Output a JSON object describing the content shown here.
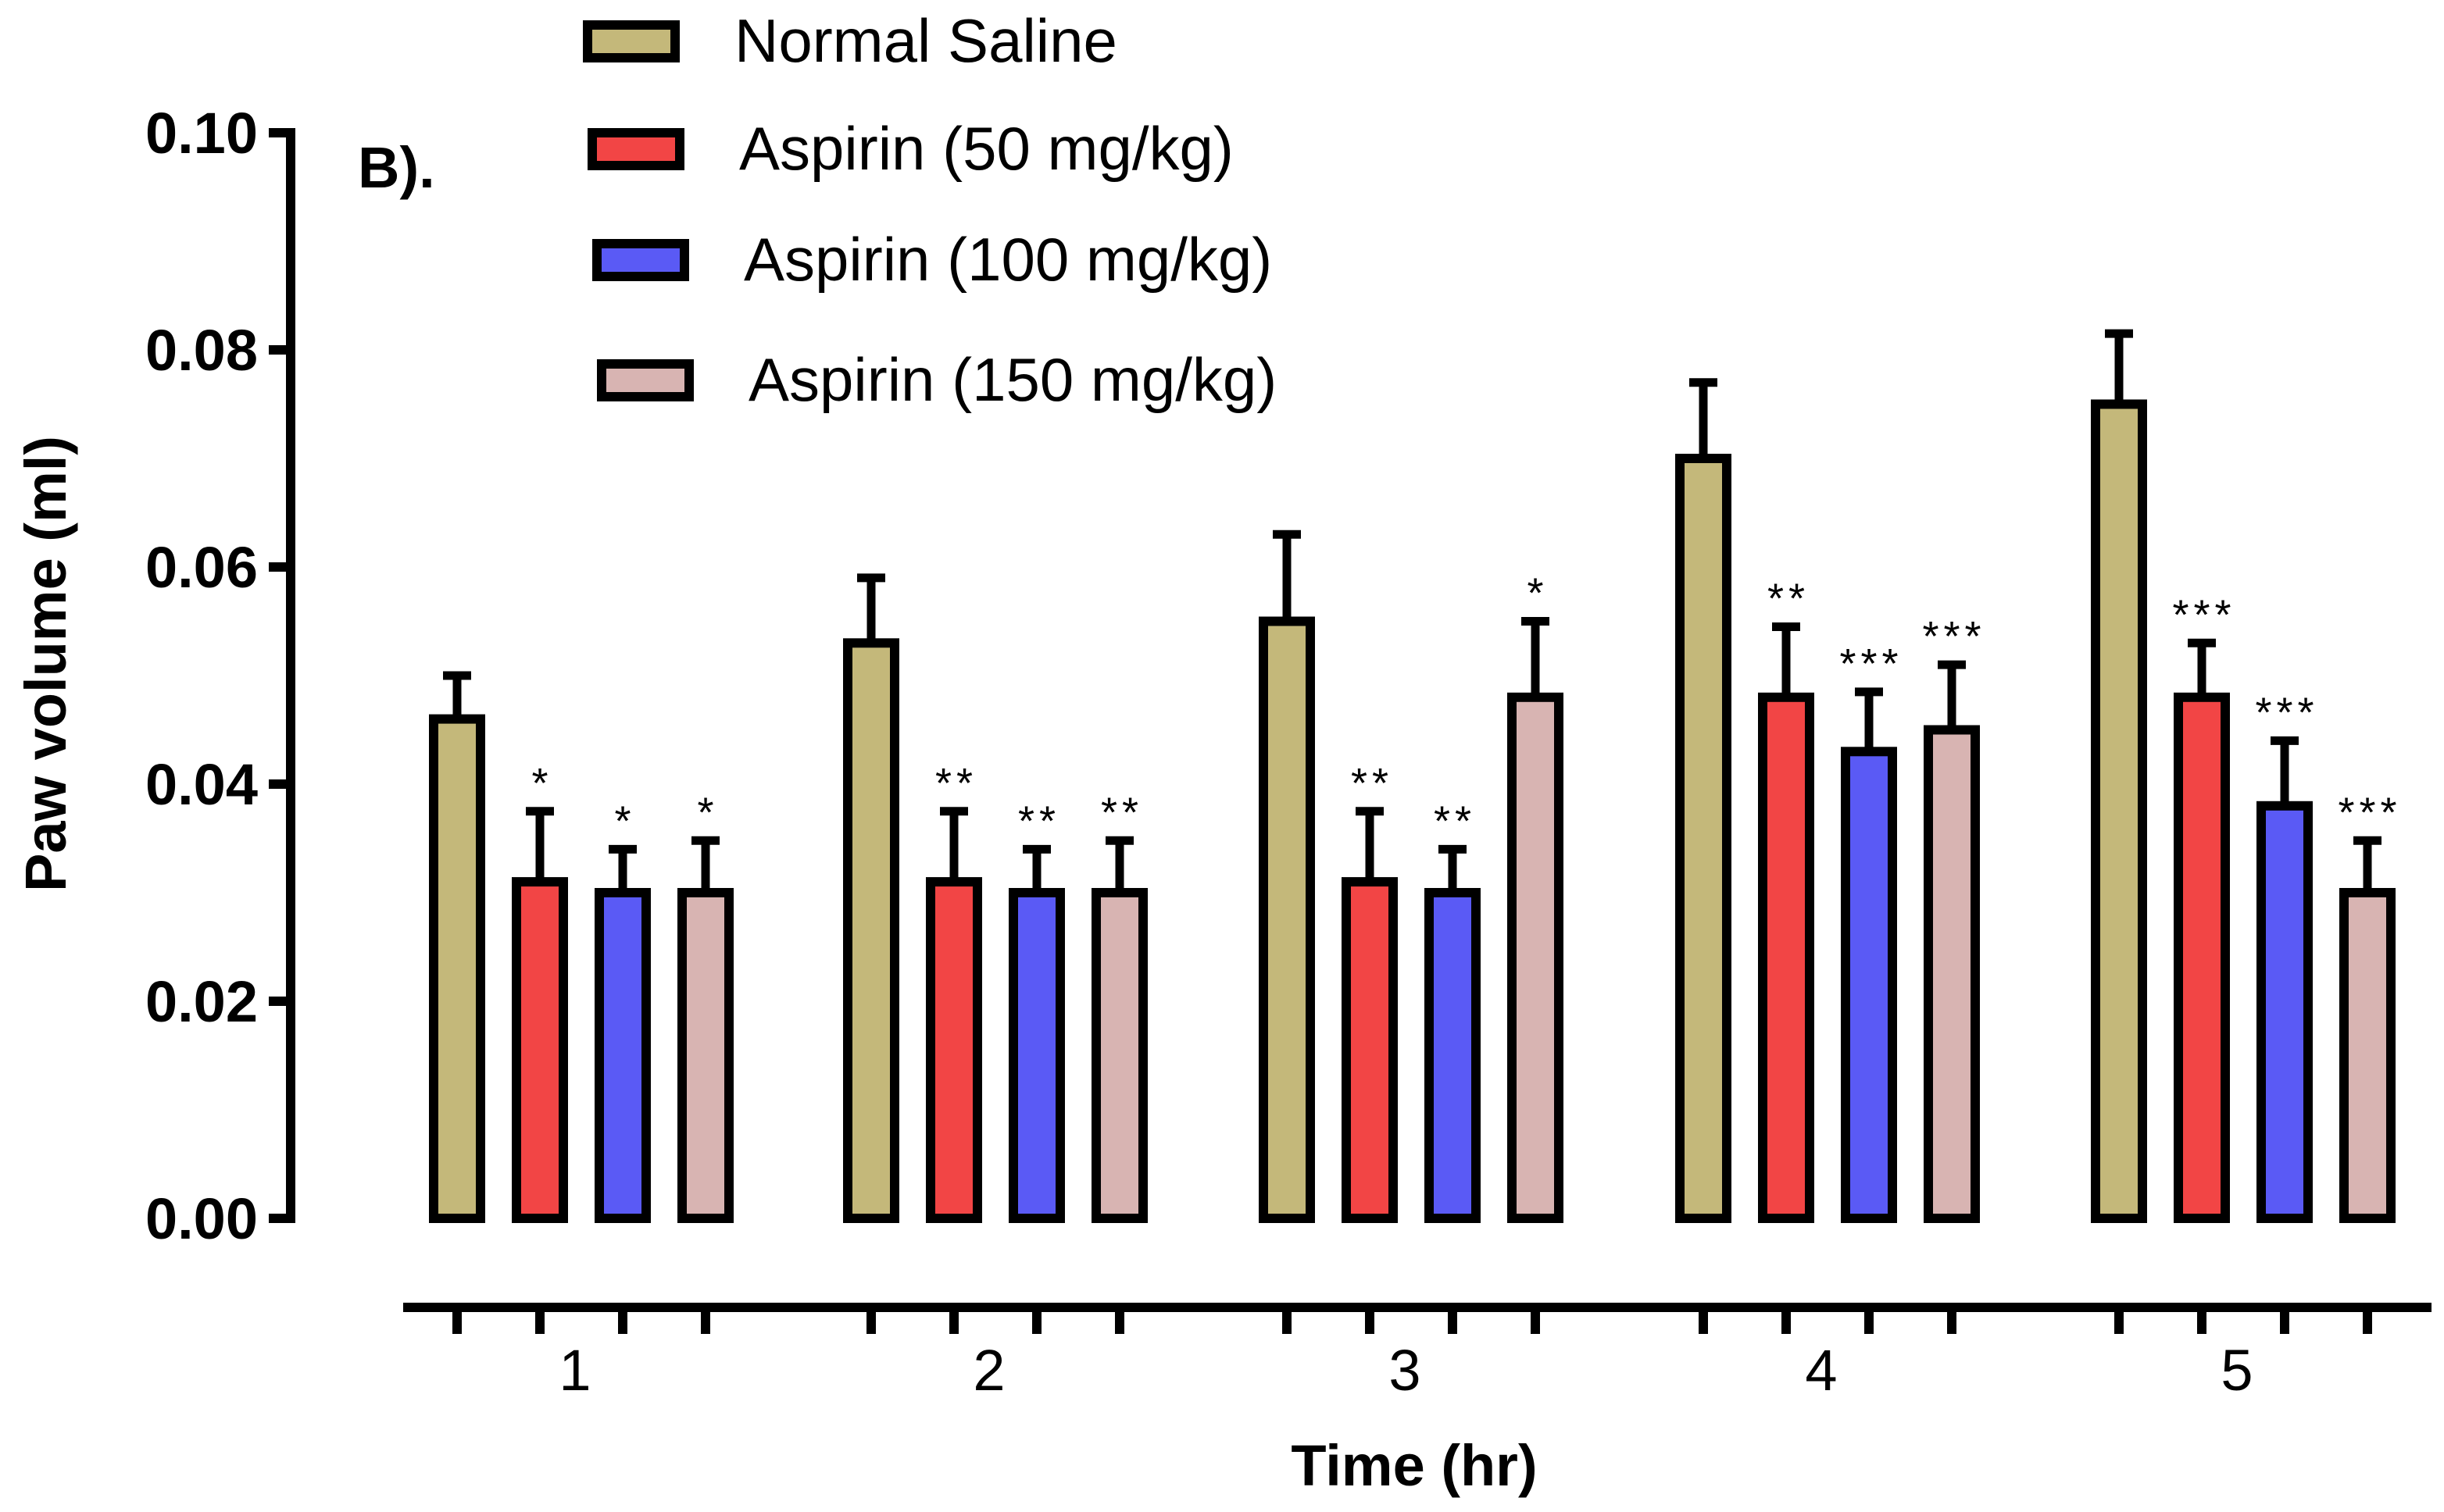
{
  "chart_data": {
    "type": "bar",
    "panel_label": "B).",
    "xlabel": "Time (hr)",
    "ylabel": "Paw volume (ml)",
    "ylim": [
      0,
      0.1
    ],
    "yticks": [
      "0.00",
      "0.02",
      "0.04",
      "0.06",
      "0.08",
      "0.10"
    ],
    "categories": [
      "1",
      "2",
      "3",
      "4",
      "5"
    ],
    "series": [
      {
        "name": "Normal Saline",
        "color": "#c4b87a",
        "values": [
          0.046,
          0.053,
          0.055,
          0.07,
          0.075
        ],
        "errors": [
          0.004,
          0.006,
          0.008,
          0.007,
          0.0065
        ],
        "significance": [
          "",
          "",
          "",
          "",
          ""
        ]
      },
      {
        "name": "Aspirin (50 mg/kg)",
        "color": "#f24545",
        "values": [
          0.031,
          0.031,
          0.031,
          0.048,
          0.048
        ],
        "errors": [
          0.0065,
          0.0065,
          0.0065,
          0.0065,
          0.005
        ],
        "significance": [
          "*",
          "**",
          "**",
          "**",
          "***"
        ]
      },
      {
        "name": "Aspirin (100 mg/kg)",
        "color": "#5a5af5",
        "values": [
          0.03,
          0.03,
          0.03,
          0.043,
          0.038
        ],
        "errors": [
          0.004,
          0.004,
          0.004,
          0.0055,
          0.006
        ],
        "significance": [
          "*",
          "**",
          "**",
          "***",
          "***"
        ]
      },
      {
        "name": "Aspirin (150 mg/kg)",
        "color": "#d8b4b2",
        "values": [
          0.03,
          0.03,
          0.048,
          0.045,
          0.03
        ],
        "errors": [
          0.0048,
          0.0048,
          0.007,
          0.006,
          0.0048
        ],
        "significance": [
          "*",
          "**",
          "*",
          "***",
          "***"
        ]
      }
    ],
    "legend_position": "top"
  }
}
